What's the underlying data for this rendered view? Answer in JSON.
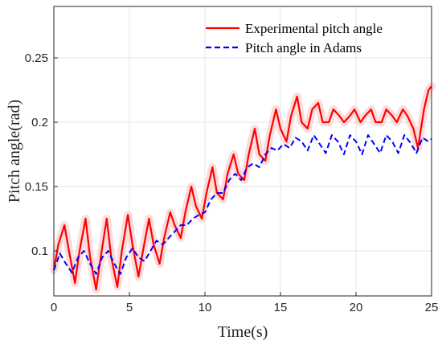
{
  "chart_data": {
    "type": "line",
    "xlabel": "Time(s)",
    "ylabel": "Pitch angle(rad)",
    "xlim": [
      0,
      25
    ],
    "ylim": [
      0.065,
      0.29
    ],
    "xticks": [
      "0",
      "5",
      "10",
      "15",
      "20",
      "25"
    ],
    "yticks": [
      "0.1",
      "0.15",
      "0.2",
      "0.25"
    ],
    "grid": true,
    "legend_position": "top-right",
    "series": [
      {
        "name": "Experimental pitch angle",
        "color": "#ff0000",
        "style": "solid",
        "band_color": "#f9d0d0",
        "x": [
          0,
          0.3,
          0.7,
          1.0,
          1.4,
          1.7,
          2.1,
          2.4,
          2.8,
          3.1,
          3.5,
          3.8,
          4.2,
          4.5,
          4.9,
          5.2,
          5.6,
          5.9,
          6.3,
          6.6,
          7.0,
          7.3,
          7.7,
          8.0,
          8.4,
          8.7,
          9.1,
          9.4,
          9.8,
          10.1,
          10.5,
          10.8,
          11.2,
          11.5,
          11.9,
          12.2,
          12.6,
          12.9,
          13.3,
          13.6,
          14.0,
          14.3,
          14.7,
          15.0,
          15.4,
          15.7,
          16.1,
          16.4,
          16.8,
          17.1,
          17.5,
          17.8,
          18.2,
          18.5,
          18.9,
          19.2,
          19.6,
          19.9,
          20.3,
          20.6,
          21.0,
          21.3,
          21.7,
          22.0,
          22.4,
          22.7,
          23.1,
          23.4,
          23.8,
          24.1,
          24.5,
          24.8,
          25.0
        ],
        "y": [
          0.085,
          0.105,
          0.12,
          0.1,
          0.075,
          0.1,
          0.125,
          0.095,
          0.07,
          0.095,
          0.125,
          0.095,
          0.072,
          0.1,
          0.128,
          0.105,
          0.08,
          0.1,
          0.125,
          0.105,
          0.09,
          0.11,
          0.13,
          0.12,
          0.11,
          0.13,
          0.15,
          0.135,
          0.125,
          0.145,
          0.165,
          0.145,
          0.14,
          0.16,
          0.175,
          0.16,
          0.155,
          0.175,
          0.195,
          0.175,
          0.17,
          0.19,
          0.21,
          0.195,
          0.185,
          0.205,
          0.22,
          0.2,
          0.195,
          0.21,
          0.215,
          0.2,
          0.2,
          0.21,
          0.205,
          0.2,
          0.205,
          0.21,
          0.2,
          0.205,
          0.21,
          0.2,
          0.2,
          0.21,
          0.205,
          0.2,
          0.21,
          0.205,
          0.195,
          0.18,
          0.21,
          0.225,
          0.228
        ]
      },
      {
        "name": "Pitch angle in Adams",
        "color": "#0000ff",
        "style": "dashed",
        "x": [
          0,
          0.4,
          0.8,
          1.2,
          1.6,
          2.0,
          2.4,
          2.8,
          3.2,
          3.6,
          4.0,
          4.4,
          4.8,
          5.2,
          5.6,
          6.0,
          6.4,
          6.8,
          7.2,
          7.6,
          8.0,
          8.4,
          8.8,
          9.2,
          9.6,
          10.0,
          10.4,
          10.8,
          11.2,
          11.6,
          12.0,
          12.4,
          12.8,
          13.2,
          13.6,
          14.0,
          14.4,
          14.8,
          15.2,
          15.6,
          16.0,
          16.4,
          16.8,
          17.2,
          17.6,
          18.0,
          18.4,
          18.8,
          19.2,
          19.6,
          20.0,
          20.4,
          20.8,
          21.2,
          21.6,
          22.0,
          22.4,
          22.8,
          23.2,
          23.6,
          24.0,
          24.4,
          24.8,
          25.0
        ],
        "y": [
          0.085,
          0.098,
          0.09,
          0.083,
          0.095,
          0.1,
          0.09,
          0.082,
          0.095,
          0.1,
          0.09,
          0.082,
          0.095,
          0.102,
          0.095,
          0.092,
          0.1,
          0.108,
          0.105,
          0.11,
          0.115,
          0.12,
          0.12,
          0.125,
          0.128,
          0.13,
          0.14,
          0.145,
          0.145,
          0.155,
          0.16,
          0.155,
          0.165,
          0.168,
          0.165,
          0.175,
          0.18,
          0.178,
          0.183,
          0.18,
          0.188,
          0.185,
          0.178,
          0.19,
          0.183,
          0.176,
          0.19,
          0.185,
          0.175,
          0.19,
          0.185,
          0.175,
          0.19,
          0.183,
          0.176,
          0.19,
          0.185,
          0.176,
          0.19,
          0.184,
          0.176,
          0.188,
          0.185,
          0.187
        ]
      }
    ]
  }
}
